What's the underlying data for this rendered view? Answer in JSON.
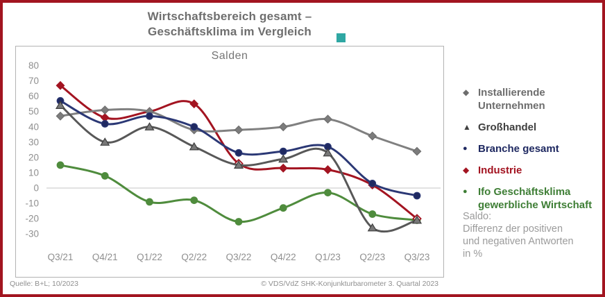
{
  "title": {
    "line1": "Wirtschaftsbereich gesamt –",
    "line2": "Geschäftsklima im Vergleich"
  },
  "note": {
    "lines": [
      "Saldo:",
      "Differenz der positiven",
      "und negativen Antworten",
      "in %"
    ]
  },
  "footer": {
    "source": "Quelle: B+L; 10/2023",
    "copyright": "© VDS/VdZ SHK-Konjunkturbarometer 3. Quartal 2023"
  },
  "colors": {
    "frame_border": "#a21520",
    "teal_accent": "#2fa7a3",
    "zero_gridline": "#d9d9d9"
  },
  "legend": {
    "items": [
      {
        "marker": "diamond",
        "color": "#6d6d6d",
        "label_lines": [
          "Installierende",
          "Unternehmen"
        ]
      },
      {
        "marker": "triangle",
        "color": "#3f3f3f",
        "label_lines": [
          "Großhandel"
        ]
      },
      {
        "marker": "circle",
        "color": "#1f2961",
        "label_lines": [
          "Branche gesamt"
        ]
      },
      {
        "marker": "diamond",
        "color": "#a31421",
        "label_lines": [
          "Industrie"
        ]
      },
      {
        "marker": "circle",
        "color": "#3e7e35",
        "label_lines": [
          "Ifo Geschäftsklima",
          "gewerbliche Wirtschaft"
        ]
      }
    ]
  },
  "chart_data": {
    "type": "line",
    "title": "Salden",
    "categories": [
      "Q3/21",
      "Q4/21",
      "Q1/22",
      "Q2/22",
      "Q3/22",
      "Q4/22",
      "Q1/23",
      "Q2/23",
      "Q3/23"
    ],
    "yticks": [
      80,
      70,
      60,
      50,
      40,
      30,
      20,
      10,
      0,
      -10,
      -20,
      -30
    ],
    "ylim": [
      -30,
      80
    ],
    "grid": "zero-line-only",
    "legend_position": "right",
    "line_style": "smooth",
    "draw_order": [
      4,
      3,
      0,
      2,
      1
    ],
    "series": [
      {
        "name": "Installierende Unternehmen",
        "marker": "diamond",
        "color": "#808080",
        "marker_fill": "#7c7c7c",
        "marker_stroke": "#6f6f6f",
        "open_points": [],
        "values": [
          47,
          51,
          50,
          38,
          38,
          40,
          45,
          34,
          24
        ]
      },
      {
        "name": "Großhandel",
        "marker": "triangle",
        "color": "#585858",
        "marker_fill": "#787878",
        "marker_stroke": "#3f3f3f",
        "open_points": [],
        "values": [
          54,
          30,
          40,
          27,
          15,
          19,
          23,
          -26,
          -21
        ]
      },
      {
        "name": "Branche gesamt",
        "marker": "circle",
        "color": "#2b3875",
        "marker_fill": "#1f2961",
        "marker_stroke": "#2b3875",
        "open_points": [],
        "values": [
          57,
          42,
          47,
          40,
          23,
          24,
          27,
          3,
          -5
        ]
      },
      {
        "name": "Industrie",
        "marker": "diamond",
        "color": "#a31421",
        "marker_fill": "#a31421",
        "marker_stroke": "#a31421",
        "open_points": [
          4,
          8
        ],
        "values": [
          67,
          46,
          50,
          55,
          16,
          13,
          12,
          2,
          -20
        ]
      },
      {
        "name": "Ifo Geschäftsklima gewerbliche Wirtschaft",
        "marker": "circle",
        "color": "#4f8c3d",
        "marker_fill": "#4f8c3d",
        "marker_stroke": "#4f8c3d",
        "open_points": [],
        "values": [
          15,
          8,
          -9,
          -8,
          -22,
          -13,
          -3,
          -17,
          -21
        ]
      }
    ]
  }
}
